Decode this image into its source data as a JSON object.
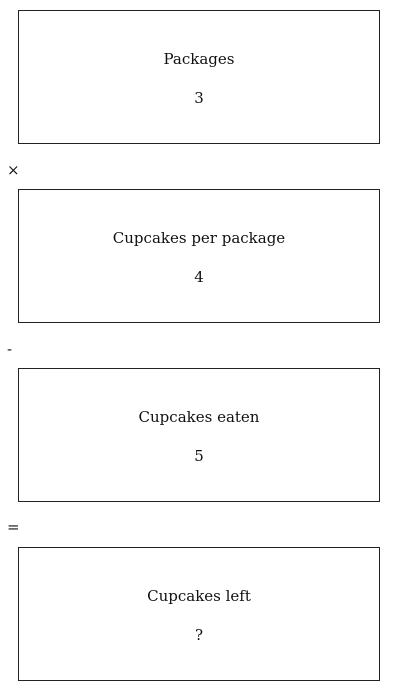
{
  "boxes": [
    {
      "label": "Packages",
      "value": "3"
    },
    {
      "label": "Cupcakes per package",
      "value": "4"
    },
    {
      "label": "Cupcakes eaten",
      "value": "5"
    },
    {
      "label": "Cupcakes left",
      "value": "?"
    }
  ],
  "operators": [
    "×",
    "-",
    "="
  ]
}
